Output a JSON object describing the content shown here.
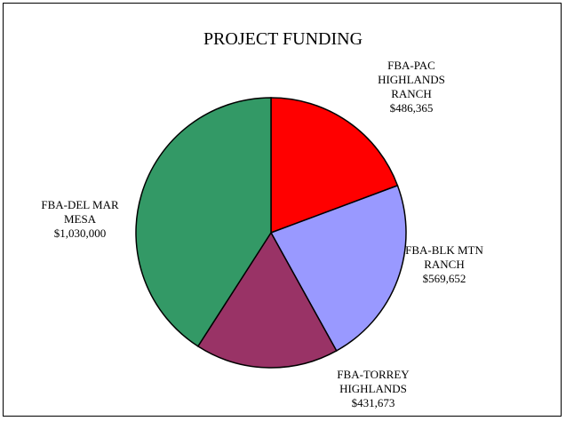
{
  "chart_data": {
    "type": "pie",
    "title": "PROJECT FUNDING",
    "categories": [
      "FBA-PAC HIGHLANDS RANCH",
      "FBA-BLK MTN RANCH",
      "FBA-TORREY HIGHLANDS",
      "FBA-DEL MAR MESA"
    ],
    "values": [
      486365,
      569652,
      431673,
      1030000
    ],
    "value_labels": [
      "$486,365",
      "$569,652",
      "$431,673",
      "$1,030,000"
    ],
    "colors": [
      "#ff0000",
      "#9999ff",
      "#993366",
      "#339966"
    ]
  }
}
